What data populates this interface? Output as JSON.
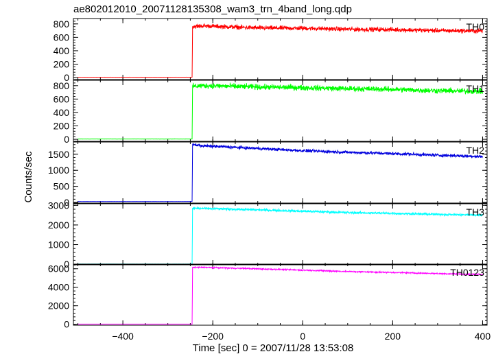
{
  "chart_data": {
    "type": "line",
    "title": "ae802012010_20071128135308_wam3_trn_4band_long.qdp",
    "xlabel": "Time [sec] 0 = 2007/11/28 13:53:08",
    "ylabel": "Counts/sec",
    "xlim": [
      -510,
      410
    ],
    "x_ticks": [
      -400,
      -200,
      0,
      200,
      400
    ],
    "x_tick_labels": [
      "−400",
      "−200",
      "0",
      "200",
      "400"
    ],
    "grid": false,
    "step_time": -245,
    "panels": [
      {
        "name": "TH0",
        "color": "#ff0000",
        "ylim": [
          -30,
          880
        ],
        "yticks": [
          0,
          200,
          400,
          600,
          800
        ],
        "ytick_labels": [
          "0",
          "200",
          "400",
          "600",
          "800"
        ],
        "pre_level": 5,
        "points": [
          [
            -500,
            5
          ],
          [
            -246,
            5
          ],
          [
            -245,
            760
          ],
          [
            -220,
            770
          ],
          [
            -100,
            740
          ],
          [
            0,
            735
          ],
          [
            100,
            720
          ],
          [
            200,
            715
          ],
          [
            300,
            700
          ],
          [
            400,
            695
          ]
        ],
        "noise": 28
      },
      {
        "name": "TH1",
        "color": "#00ff00",
        "ylim": [
          -30,
          880
        ],
        "yticks": [
          0,
          200,
          400,
          600,
          800
        ],
        "ytick_labels": [
          "0",
          "200",
          "400",
          "600",
          "800"
        ],
        "pre_level": 5,
        "points": [
          [
            -500,
            5
          ],
          [
            -246,
            5
          ],
          [
            -245,
            790
          ],
          [
            -220,
            800
          ],
          [
            -100,
            780
          ],
          [
            0,
            770
          ],
          [
            100,
            755
          ],
          [
            200,
            745
          ],
          [
            300,
            725
          ],
          [
            400,
            715
          ]
        ],
        "noise": 35
      },
      {
        "name": "TH2",
        "color": "#0000dd",
        "ylim": [
          -20,
          1880
        ],
        "yticks": [
          0,
          500,
          1000,
          1500
        ],
        "ytick_labels": [
          "0",
          "500",
          "1000",
          "1500"
        ],
        "pre_level": 30,
        "points": [
          [
            -500,
            30
          ],
          [
            -246,
            30
          ],
          [
            -245,
            1800
          ],
          [
            -220,
            1760
          ],
          [
            -100,
            1680
          ],
          [
            0,
            1610
          ],
          [
            100,
            1560
          ],
          [
            200,
            1520
          ],
          [
            300,
            1470
          ],
          [
            400,
            1430
          ]
        ],
        "noise": 40
      },
      {
        "name": "TH3",
        "color": "#00ffff",
        "ylim": [
          -30,
          3080
        ],
        "yticks": [
          0,
          1000,
          2000,
          3000
        ],
        "ytick_labels": [
          "0",
          "1000",
          "2000",
          "3000"
        ],
        "pre_level": 10,
        "points": [
          [
            -500,
            10
          ],
          [
            -246,
            10
          ],
          [
            -245,
            2850
          ],
          [
            -220,
            2840
          ],
          [
            -100,
            2770
          ],
          [
            0,
            2700
          ],
          [
            100,
            2630
          ],
          [
            200,
            2590
          ],
          [
            300,
            2540
          ],
          [
            400,
            2500
          ]
        ],
        "noise": 50
      },
      {
        "name": "TH0123",
        "color": "#ff00ff",
        "ylim": [
          -100,
          6500
        ],
        "yticks": [
          0,
          2000,
          4000,
          6000
        ],
        "ytick_labels": [
          "0",
          "2000",
          "4000",
          "6000"
        ],
        "pre_level": 20,
        "points": [
          [
            -500,
            20
          ],
          [
            -246,
            20
          ],
          [
            -245,
            6150
          ],
          [
            -220,
            6150
          ],
          [
            -100,
            5990
          ],
          [
            0,
            5850
          ],
          [
            100,
            5700
          ],
          [
            200,
            5600
          ],
          [
            300,
            5480
          ],
          [
            400,
            5380
          ]
        ],
        "noise": 60
      }
    ]
  }
}
